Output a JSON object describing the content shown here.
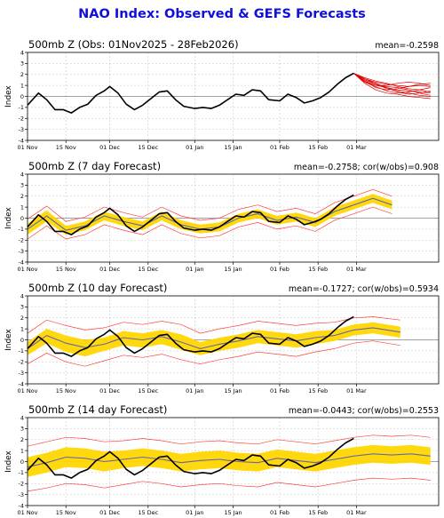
{
  "title": "NAO Index: Observed & GEFS Forecasts",
  "y_label": "Index",
  "x_ticks": [
    "01 Nov",
    "15 Nov",
    "01 Dec",
    "15 Dec",
    "01 Jan",
    "15 Jan",
    "01 Feb",
    "15 Feb",
    "01 Mar"
  ],
  "colors": {
    "title": "#1010d8",
    "observed": "#000000",
    "ensemble": "#dd0000",
    "band": "#ffd700",
    "bound": "#ff4040",
    "mean": "#6666aa",
    "grid": "#c8c8c8"
  },
  "panels": [
    {
      "title": "500mb Z (Obs: 01Nov2025 - 28Feb2026)",
      "stat": "mean=-0.2598"
    },
    {
      "title": "500mb Z (7 day Forecast)",
      "stat": "mean=-0.2758; cor(w/obs)=0.908"
    },
    {
      "title": "500mb Z (10 day Forecast)",
      "stat": "mean=-0.1727; cor(w/obs)=0.5934"
    },
    {
      "title": "500mb Z (14 day Forecast)",
      "stat": "mean=-0.0443; cor(w/obs)=0.2553"
    }
  ],
  "chart_data": {
    "type": "line",
    "title": "NAO Index: Observed & GEFS Forecasts",
    "ylabel": "Index",
    "ylim": [
      -4,
      4
    ],
    "y_ticks": [
      -4,
      -3,
      -2,
      -1,
      0,
      1,
      2,
      3,
      4
    ],
    "x_start": "2025-11-01",
    "x_end": "2026-03-31",
    "grid": true,
    "observed": {
      "dates": [
        "2025-11-01",
        "2025-11-05",
        "2025-11-08",
        "2025-11-11",
        "2025-11-14",
        "2025-11-17",
        "2025-11-20",
        "2025-11-23",
        "2025-11-26",
        "2025-11-29",
        "2025-12-01",
        "2025-12-04",
        "2025-12-07",
        "2025-12-10",
        "2025-12-13",
        "2025-12-16",
        "2025-12-19",
        "2025-12-22",
        "2025-12-25",
        "2025-12-28",
        "2026-01-01",
        "2026-01-04",
        "2026-01-07",
        "2026-01-10",
        "2026-01-13",
        "2026-01-16",
        "2026-01-19",
        "2026-01-22",
        "2026-01-25",
        "2026-01-28",
        "2026-02-01",
        "2026-02-04",
        "2026-02-07",
        "2026-02-10",
        "2026-02-13",
        "2026-02-16",
        "2026-02-19",
        "2026-02-22",
        "2026-02-25",
        "2026-02-28"
      ],
      "values": [
        -0.8,
        0.3,
        -0.3,
        -1.2,
        -1.2,
        -1.5,
        -1.0,
        -0.7,
        0.1,
        0.5,
        0.9,
        0.3,
        -0.7,
        -1.2,
        -0.8,
        -0.2,
        0.4,
        0.5,
        -0.3,
        -0.9,
        -1.1,
        -1.0,
        -1.1,
        -0.8,
        -0.3,
        0.2,
        0.1,
        0.6,
        0.5,
        -0.3,
        -0.4,
        0.2,
        -0.1,
        -0.6,
        -0.4,
        -0.1,
        0.4,
        1.1,
        1.7,
        2.1
      ]
    },
    "gefs_forecast": {
      "dates": [
        "2026-02-28",
        "2026-03-04",
        "2026-03-08",
        "2026-03-12",
        "2026-03-16",
        "2026-03-20",
        "2026-03-24",
        "2026-03-28"
      ],
      "members": [
        [
          2.1,
          1.4,
          1.0,
          0.8,
          0.6,
          0.5,
          0.4,
          0.3
        ],
        [
          2.1,
          1.6,
          1.3,
          1.1,
          1.0,
          0.9,
          1.1,
          1.2
        ],
        [
          2.1,
          1.2,
          0.6,
          0.3,
          0.2,
          0.0,
          -0.1,
          -0.2
        ],
        [
          2.1,
          1.5,
          1.2,
          0.8,
          0.4,
          0.2,
          0.3,
          0.5
        ],
        [
          2.1,
          1.3,
          0.9,
          0.5,
          0.3,
          0.4,
          0.6,
          0.8
        ],
        [
          2.1,
          1.7,
          1.4,
          1.2,
          0.9,
          0.7,
          0.6,
          0.4
        ],
        [
          2.1,
          1.4,
          0.8,
          0.6,
          0.7,
          0.9,
          1.0,
          0.9
        ],
        [
          2.1,
          1.5,
          1.1,
          0.9,
          0.8,
          0.6,
          0.3,
          0.1
        ],
        [
          2.1,
          1.3,
          1.0,
          1.0,
          1.2,
          1.3,
          1.2,
          1.0
        ],
        [
          2.1,
          1.6,
          1.2,
          0.7,
          0.5,
          0.3,
          0.1,
          0.0
        ]
      ]
    },
    "forecasts": [
      {
        "lead": "7 day",
        "dates": [
          "2025-11-01",
          "2025-11-08",
          "2025-11-15",
          "2025-11-22",
          "2025-11-29",
          "2025-12-06",
          "2025-12-13",
          "2025-12-20",
          "2025-12-27",
          "2026-01-03",
          "2026-01-10",
          "2026-01-17",
          "2026-01-24",
          "2026-01-31",
          "2026-02-07",
          "2026-02-14",
          "2026-02-21",
          "2026-02-28",
          "2026-03-07",
          "2026-03-14"
        ],
        "mean": [
          -1.0,
          0.2,
          -1.1,
          -0.7,
          0.2,
          -0.3,
          -0.7,
          0.2,
          -0.6,
          -1.0,
          -0.8,
          0.0,
          0.4,
          -0.2,
          0.1,
          -0.4,
          0.6,
          1.2,
          1.8,
          1.2
        ],
        "band_low": [
          -1.5,
          -0.3,
          -1.5,
          -1.1,
          -0.2,
          -0.7,
          -1.1,
          -0.2,
          -1.0,
          -1.4,
          -1.2,
          -0.4,
          0.0,
          -0.6,
          -0.3,
          -0.8,
          0.2,
          0.8,
          1.4,
          0.8
        ],
        "band_high": [
          -0.5,
          0.7,
          -0.7,
          -0.3,
          0.6,
          0.1,
          -0.3,
          0.6,
          -0.2,
          -0.6,
          -0.4,
          0.4,
          0.8,
          0.2,
          0.5,
          0.0,
          1.0,
          1.6,
          2.2,
          1.6
        ],
        "bound_low": [
          -1.9,
          -0.7,
          -1.9,
          -1.5,
          -0.6,
          -1.1,
          -1.5,
          -0.6,
          -1.4,
          -1.8,
          -1.6,
          -0.8,
          -0.4,
          -1.0,
          -0.7,
          -1.2,
          -0.2,
          0.4,
          1.0,
          0.4
        ],
        "bound_high": [
          -0.1,
          1.1,
          -0.3,
          0.1,
          1.0,
          0.5,
          0.1,
          1.0,
          0.2,
          -0.2,
          0.0,
          0.8,
          1.2,
          0.6,
          0.9,
          0.4,
          1.4,
          2.0,
          2.6,
          2.0
        ]
      },
      {
        "lead": "10 day",
        "dates": [
          "2025-11-01",
          "2025-11-08",
          "2025-11-15",
          "2025-11-22",
          "2025-11-29",
          "2025-12-06",
          "2025-12-13",
          "2025-12-20",
          "2025-12-27",
          "2026-01-03",
          "2026-01-10",
          "2026-01-17",
          "2026-01-24",
          "2026-01-31",
          "2026-02-07",
          "2026-02-14",
          "2026-02-21",
          "2026-02-28",
          "2026-03-07",
          "2026-03-17"
        ],
        "mean": [
          -0.8,
          0.4,
          -0.3,
          -0.7,
          -0.4,
          0.2,
          0.0,
          0.3,
          -0.2,
          -0.8,
          -0.4,
          -0.1,
          0.3,
          0.1,
          -0.1,
          0.2,
          0.4,
          0.9,
          1.1,
          0.7
        ],
        "band_low": [
          -1.4,
          -0.3,
          -1.1,
          -1.5,
          -1.0,
          -0.5,
          -0.7,
          -0.4,
          -0.9,
          -1.4,
          -1.0,
          -0.7,
          -0.3,
          -0.5,
          -0.7,
          -0.4,
          -0.1,
          0.4,
          0.6,
          0.2
        ],
        "band_high": [
          -0.2,
          1.0,
          0.4,
          0.0,
          0.2,
          0.8,
          0.6,
          0.9,
          0.5,
          -0.2,
          0.2,
          0.5,
          0.9,
          0.7,
          0.5,
          0.8,
          0.9,
          1.4,
          1.6,
          1.2
        ],
        "bound_low": [
          -2.2,
          -1.2,
          -2.0,
          -2.4,
          -1.9,
          -1.4,
          -1.6,
          -1.3,
          -1.8,
          -2.2,
          -1.8,
          -1.5,
          -1.1,
          -1.3,
          -1.5,
          -1.1,
          -0.8,
          -0.3,
          -0.1,
          -0.5
        ],
        "bound_high": [
          0.6,
          1.8,
          1.3,
          0.9,
          1.1,
          1.6,
          1.4,
          1.7,
          1.4,
          0.6,
          1.0,
          1.3,
          1.7,
          1.5,
          1.3,
          1.5,
          1.6,
          2.0,
          2.1,
          1.8
        ]
      },
      {
        "lead": "14 day",
        "dates": [
          "2025-11-01",
          "2025-11-08",
          "2025-11-15",
          "2025-11-22",
          "2025-11-29",
          "2025-12-06",
          "2025-12-13",
          "2025-12-20",
          "2025-12-27",
          "2026-01-03",
          "2026-01-10",
          "2026-01-17",
          "2026-01-24",
          "2026-01-31",
          "2026-02-07",
          "2026-02-14",
          "2026-02-21",
          "2026-02-28",
          "2026-03-07",
          "2026-03-14",
          "2026-03-21",
          "2026-03-28"
        ],
        "mean": [
          -0.5,
          -0.1,
          0.4,
          0.3,
          0.0,
          0.2,
          0.4,
          0.2,
          -0.1,
          0.1,
          0.2,
          0.0,
          -0.1,
          0.3,
          0.1,
          -0.1,
          0.2,
          0.5,
          0.7,
          0.6,
          0.7,
          0.5
        ],
        "band_low": [
          -1.4,
          -1.0,
          -0.5,
          -0.6,
          -0.9,
          -0.6,
          -0.4,
          -0.6,
          -0.9,
          -0.7,
          -0.6,
          -0.8,
          -0.9,
          -0.5,
          -0.7,
          -0.9,
          -0.6,
          -0.3,
          -0.1,
          -0.2,
          -0.1,
          -0.3
        ],
        "band_high": [
          0.4,
          0.8,
          1.3,
          1.2,
          0.9,
          1.0,
          1.2,
          1.0,
          0.7,
          0.9,
          1.0,
          0.8,
          0.7,
          1.1,
          0.9,
          0.7,
          1.0,
          1.3,
          1.5,
          1.4,
          1.5,
          1.3
        ],
        "bound_low": [
          -2.7,
          -2.4,
          -2.0,
          -2.1,
          -2.4,
          -2.1,
          -1.8,
          -2.0,
          -2.3,
          -2.1,
          -2.0,
          -2.2,
          -2.3,
          -1.9,
          -2.1,
          -2.3,
          -2.0,
          -1.7,
          -1.5,
          -1.6,
          -1.5,
          -1.7
        ],
        "bound_high": [
          1.4,
          1.8,
          2.2,
          2.1,
          1.8,
          1.9,
          2.1,
          1.9,
          1.6,
          1.8,
          1.9,
          1.7,
          1.6,
          2.0,
          1.8,
          1.6,
          1.9,
          2.2,
          2.4,
          2.3,
          2.4,
          2.2
        ]
      }
    ]
  }
}
